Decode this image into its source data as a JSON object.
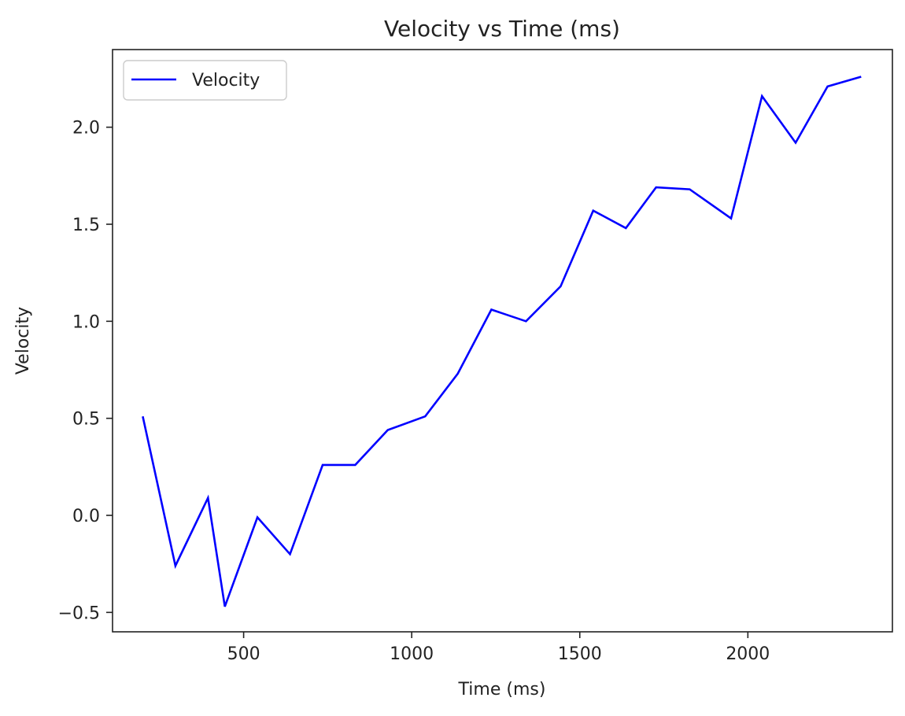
{
  "chart_data": {
    "type": "line",
    "title": "Velocity vs Time (ms)",
    "xlabel": "Time (ms)",
    "ylabel": "Velocity",
    "xlim": [
      110,
      2430
    ],
    "ylim": [
      -0.6,
      2.4
    ],
    "xticks": [
      500,
      1000,
      1500,
      2000
    ],
    "xtick_labels": [
      "500",
      "1000",
      "1500",
      "2000"
    ],
    "yticks": [
      -0.5,
      0.0,
      0.5,
      1.0,
      1.5,
      2.0
    ],
    "ytick_labels": [
      "−0.5",
      "0.0",
      "0.5",
      "1.0",
      "1.5",
      "2.0"
    ],
    "grid": false,
    "legend_position": "top-left",
    "series": [
      {
        "name": "Velocity",
        "color": "#0000ff",
        "x": [
          200,
          297,
          394,
          444,
          541,
          638,
          735,
          832,
          929,
          1040,
          1137,
          1237,
          1340,
          1443,
          1540,
          1637,
          1727,
          1827,
          1950,
          2042,
          2142,
          2237,
          2337
        ],
        "y": [
          0.51,
          -0.26,
          0.09,
          -0.47,
          -0.01,
          -0.2,
          0.26,
          0.26,
          0.44,
          0.51,
          0.73,
          1.06,
          1.0,
          1.18,
          1.57,
          1.48,
          1.69,
          1.68,
          1.53,
          2.16,
          1.92,
          2.21,
          2.26
        ]
      }
    ]
  }
}
